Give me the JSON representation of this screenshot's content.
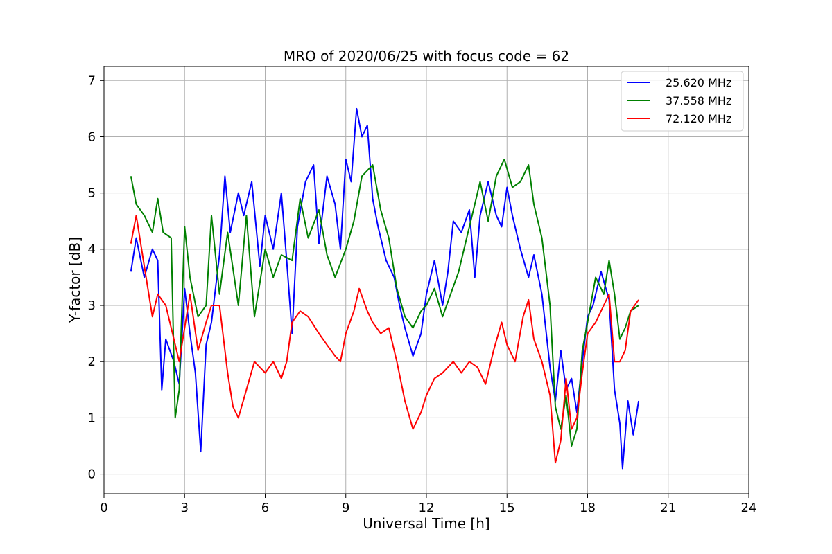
{
  "chart_data": {
    "type": "line",
    "title": "MRO of 2020/06/25 with focus code = 62",
    "xlabel": "Universal Time [h]",
    "ylabel": "Y-factor [dB]",
    "xlim": [
      0,
      24
    ],
    "ylim": [
      -0.35,
      7.25
    ],
    "xticks": [
      0,
      3,
      6,
      9,
      12,
      15,
      18,
      21,
      24
    ],
    "yticks": [
      0,
      1,
      2,
      3,
      4,
      5,
      6,
      7
    ],
    "grid": true,
    "legend_position": "top-right",
    "series": [
      {
        "name": "25.620 MHz",
        "color": "#0000ff",
        "x": [
          1.0,
          1.2,
          1.5,
          1.8,
          2.0,
          2.15,
          2.3,
          2.6,
          2.8,
          3.0,
          3.2,
          3.4,
          3.6,
          3.8,
          4.0,
          4.3,
          4.5,
          4.7,
          5.0,
          5.2,
          5.5,
          5.8,
          6.0,
          6.3,
          6.6,
          6.8,
          7.0,
          7.2,
          7.5,
          7.8,
          8.0,
          8.3,
          8.6,
          8.8,
          9.0,
          9.2,
          9.4,
          9.6,
          9.8,
          10.0,
          10.2,
          10.5,
          10.8,
          11.0,
          11.2,
          11.5,
          11.8,
          12.0,
          12.3,
          12.6,
          12.8,
          13.0,
          13.3,
          13.6,
          13.8,
          14.0,
          14.3,
          14.6,
          14.8,
          15.0,
          15.2,
          15.5,
          15.8,
          16.0,
          16.3,
          16.6,
          16.8,
          17.0,
          17.2,
          17.4,
          17.6,
          17.8,
          18.0,
          18.2,
          18.5,
          18.8,
          19.0,
          19.2,
          19.3,
          19.5,
          19.7,
          19.9
        ],
        "y": [
          3.6,
          4.2,
          3.5,
          4.0,
          3.8,
          1.5,
          2.4,
          2.0,
          1.6,
          3.3,
          2.5,
          1.8,
          0.4,
          2.3,
          2.7,
          3.9,
          5.3,
          4.3,
          5.0,
          4.6,
          5.2,
          3.7,
          4.6,
          4.0,
          5.0,
          3.8,
          2.5,
          4.4,
          5.2,
          5.5,
          4.1,
          5.3,
          4.8,
          4.0,
          5.6,
          5.2,
          6.5,
          6.0,
          6.2,
          4.9,
          4.4,
          3.8,
          3.5,
          3.0,
          2.6,
          2.1,
          2.5,
          3.2,
          3.8,
          3.0,
          3.6,
          4.5,
          4.3,
          4.7,
          3.5,
          4.6,
          5.2,
          4.6,
          4.4,
          5.1,
          4.6,
          4.0,
          3.5,
          3.9,
          3.2,
          1.9,
          1.3,
          2.2,
          1.5,
          1.7,
          1.1,
          2.0,
          2.8,
          3.0,
          3.6,
          3.1,
          1.5,
          0.9,
          0.1,
          1.3,
          0.7,
          1.3
        ]
      },
      {
        "name": "37.558 MHz",
        "color": "#008000",
        "x": [
          1.0,
          1.2,
          1.5,
          1.8,
          2.0,
          2.2,
          2.5,
          2.65,
          2.8,
          3.0,
          3.2,
          3.5,
          3.8,
          4.0,
          4.3,
          4.6,
          5.0,
          5.3,
          5.6,
          6.0,
          6.3,
          6.6,
          7.0,
          7.3,
          7.6,
          8.0,
          8.3,
          8.6,
          9.0,
          9.3,
          9.6,
          10.0,
          10.3,
          10.6,
          10.9,
          11.2,
          11.5,
          11.8,
          12.0,
          12.3,
          12.6,
          12.9,
          13.2,
          13.5,
          13.8,
          14.0,
          14.3,
          14.6,
          14.9,
          15.2,
          15.5,
          15.8,
          16.0,
          16.3,
          16.6,
          16.8,
          17.0,
          17.2,
          17.4,
          17.6,
          17.8,
          18.0,
          18.3,
          18.6,
          18.8,
          19.0,
          19.2,
          19.4,
          19.6,
          19.9
        ],
        "y": [
          5.3,
          4.8,
          4.6,
          4.3,
          4.9,
          4.3,
          4.2,
          1.0,
          1.5,
          4.4,
          3.5,
          2.8,
          3.0,
          4.6,
          3.2,
          4.3,
          3.0,
          4.6,
          2.8,
          4.0,
          3.5,
          3.9,
          3.8,
          4.9,
          4.2,
          4.7,
          3.9,
          3.5,
          4.0,
          4.5,
          5.3,
          5.5,
          4.7,
          4.2,
          3.3,
          2.8,
          2.6,
          2.9,
          3.0,
          3.3,
          2.8,
          3.2,
          3.6,
          4.2,
          4.8,
          5.2,
          4.5,
          5.3,
          5.6,
          5.1,
          5.2,
          5.5,
          4.8,
          4.2,
          3.0,
          1.2,
          0.8,
          1.4,
          0.5,
          0.8,
          2.2,
          2.7,
          3.5,
          3.2,
          3.8,
          3.2,
          2.4,
          2.6,
          2.9,
          3.0
        ]
      },
      {
        "name": "72.120 MHz",
        "color": "#ff0000",
        "x": [
          1.0,
          1.2,
          1.5,
          1.8,
          2.0,
          2.3,
          2.6,
          2.8,
          3.0,
          3.2,
          3.5,
          3.8,
          4.0,
          4.3,
          4.6,
          4.8,
          5.0,
          5.3,
          5.6,
          6.0,
          6.3,
          6.6,
          6.8,
          7.0,
          7.3,
          7.6,
          8.0,
          8.3,
          8.6,
          8.8,
          9.0,
          9.3,
          9.5,
          9.8,
          10.0,
          10.3,
          10.6,
          10.9,
          11.2,
          11.5,
          11.8,
          12.0,
          12.3,
          12.6,
          13.0,
          13.3,
          13.6,
          13.9,
          14.2,
          14.5,
          14.8,
          15.0,
          15.3,
          15.6,
          15.8,
          16.0,
          16.3,
          16.6,
          16.8,
          17.0,
          17.2,
          17.4,
          17.6,
          17.8,
          18.0,
          18.3,
          18.6,
          18.8,
          19.0,
          19.2,
          19.4,
          19.6,
          19.9
        ],
        "y": [
          4.1,
          4.6,
          3.7,
          2.8,
          3.2,
          3.0,
          2.4,
          2.0,
          2.6,
          3.2,
          2.2,
          2.7,
          3.0,
          3.0,
          1.8,
          1.2,
          1.0,
          1.5,
          2.0,
          1.8,
          2.0,
          1.7,
          2.0,
          2.7,
          2.9,
          2.8,
          2.5,
          2.3,
          2.1,
          2.0,
          2.5,
          2.9,
          3.3,
          2.9,
          2.7,
          2.5,
          2.6,
          2.0,
          1.3,
          0.8,
          1.1,
          1.4,
          1.7,
          1.8,
          2.0,
          1.8,
          2.0,
          1.9,
          1.6,
          2.2,
          2.7,
          2.3,
          2.0,
          2.8,
          3.1,
          2.4,
          2.0,
          1.4,
          0.2,
          0.6,
          1.7,
          0.8,
          1.0,
          1.8,
          2.5,
          2.7,
          3.0,
          3.2,
          2.0,
          2.0,
          2.2,
          2.9,
          3.1
        ]
      }
    ]
  }
}
